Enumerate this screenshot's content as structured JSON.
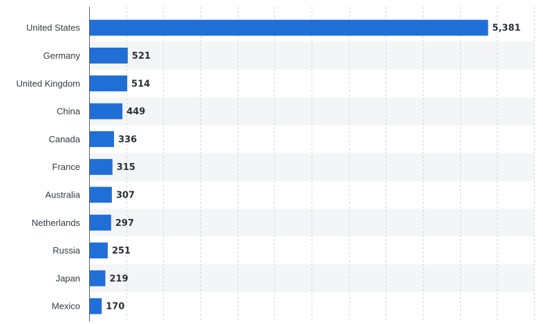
{
  "chart_data": {
    "type": "bar",
    "orientation": "horizontal",
    "categories": [
      "United States",
      "Germany",
      "United Kingdom",
      "China",
      "Canada",
      "France",
      "Australia",
      "Netherlands",
      "Russia",
      "Japan",
      "Mexico"
    ],
    "values": [
      5381,
      521,
      514,
      449,
      336,
      315,
      307,
      297,
      251,
      219,
      170
    ],
    "value_labels": [
      "5,381",
      "521",
      "514",
      "449",
      "336",
      "315",
      "307",
      "297",
      "251",
      "219",
      "170"
    ],
    "xlim": [
      0,
      6000
    ],
    "grid": true,
    "legend": "none",
    "colors": {
      "bar": "#1f6fd6",
      "band": "#f4f5f7"
    }
  }
}
